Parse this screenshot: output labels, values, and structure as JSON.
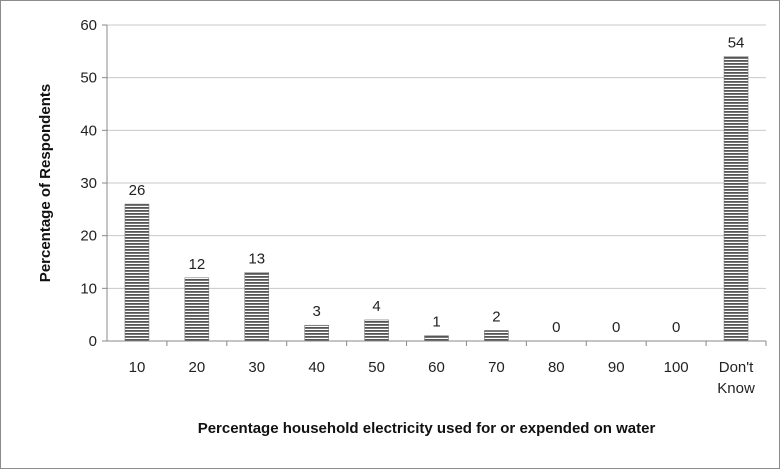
{
  "chart_data": {
    "type": "bar",
    "title": "",
    "xlabel": "Percentage household electricity used for or expended on water",
    "ylabel": "Percentage of Respondents",
    "categories": [
      [
        "10"
      ],
      [
        "20"
      ],
      [
        "30"
      ],
      [
        "40"
      ],
      [
        "50"
      ],
      [
        "60"
      ],
      [
        "70"
      ],
      [
        "80"
      ],
      [
        "90"
      ],
      [
        "100"
      ],
      [
        "Don't",
        "Know"
      ]
    ],
    "values": [
      26,
      12,
      13,
      3,
      4,
      1,
      2,
      0,
      0,
      0,
      54
    ],
    "data_labels": [
      "26",
      "12",
      "13",
      "3",
      "4",
      "1",
      "2",
      "0",
      "0",
      "0",
      "54"
    ],
    "ylim": [
      0,
      60
    ],
    "yticks": [
      0,
      10,
      20,
      30,
      40,
      50,
      60
    ],
    "grid": true,
    "legend": "none",
    "colors": {
      "bar_stripe": "#555555",
      "bar_gap": "#ffffff",
      "grid": "#c8c8c8",
      "axis": "#888888",
      "frame": "#8c8c8c"
    }
  }
}
